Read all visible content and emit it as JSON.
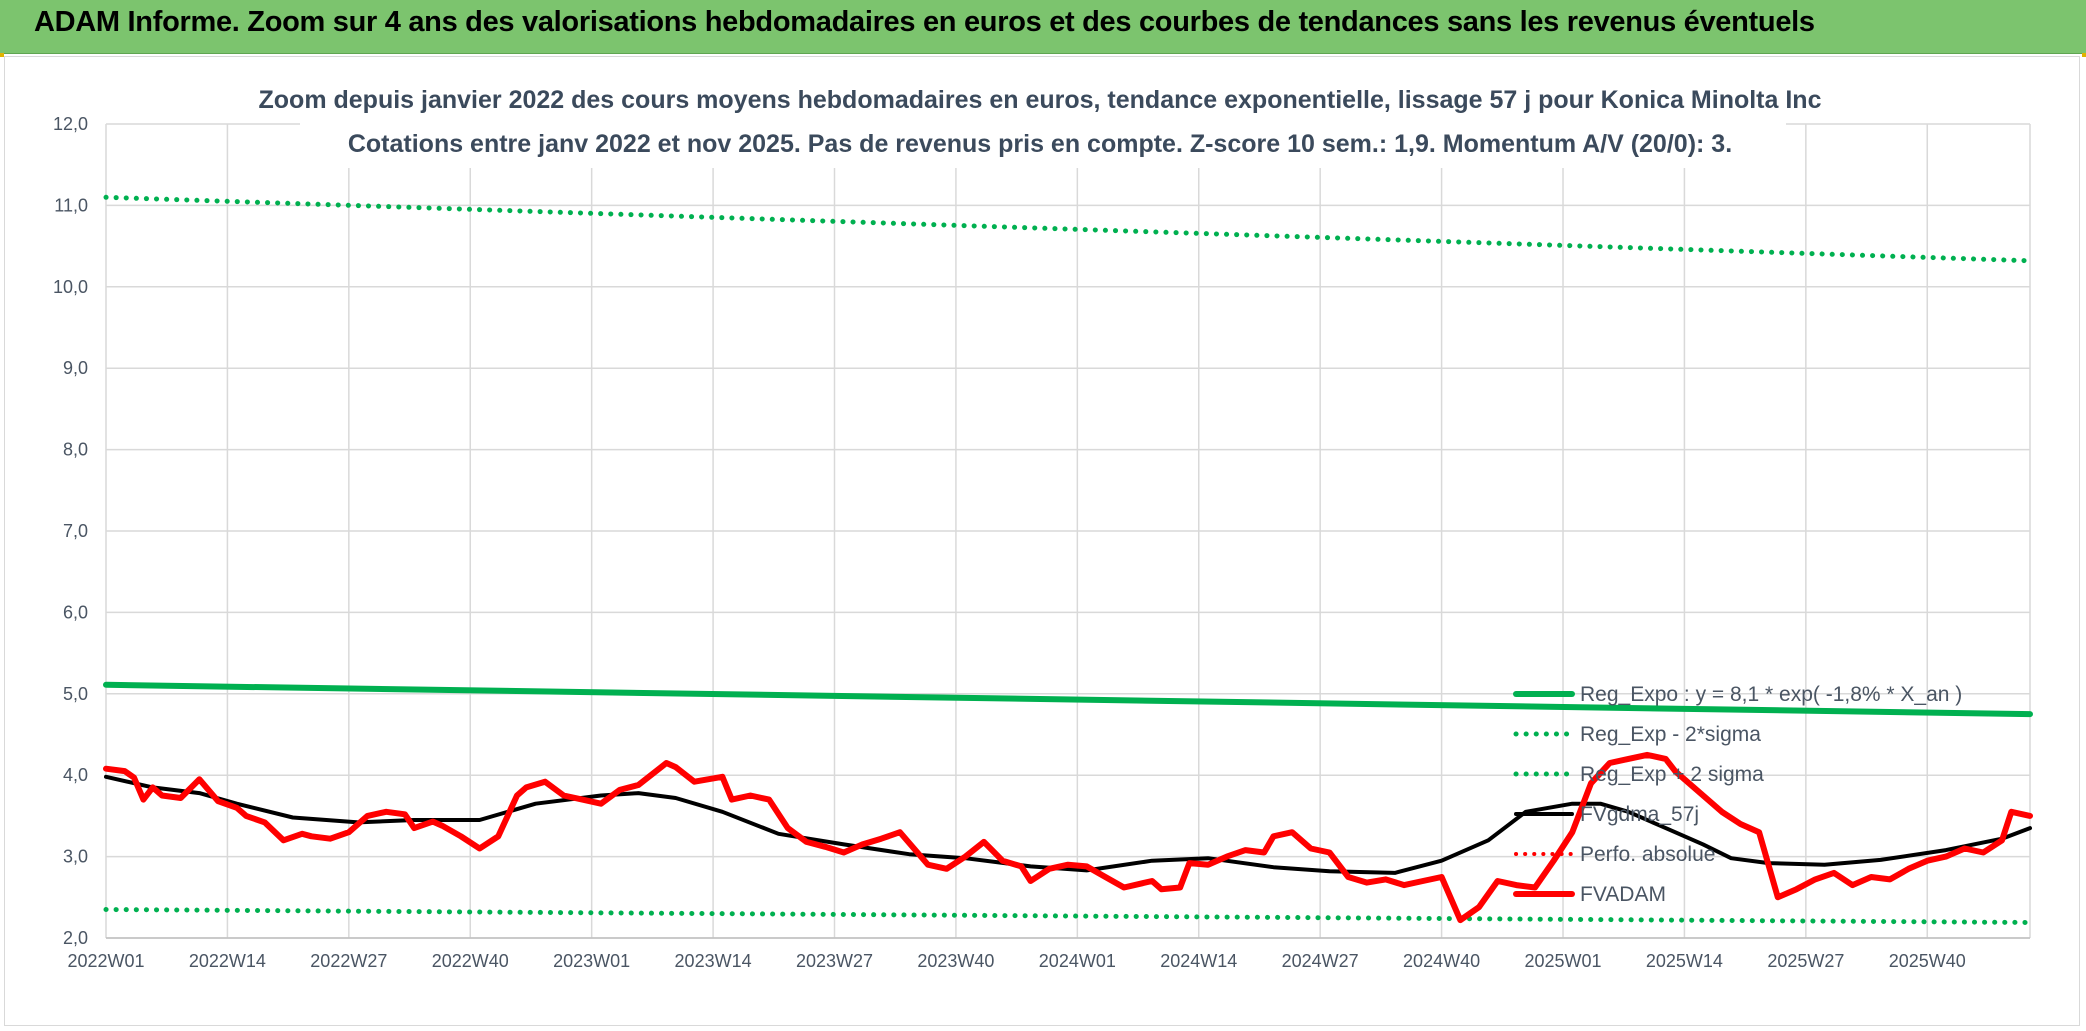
{
  "banner": {
    "title": "ADAM Informe. Zoom sur 4 ans des valorisations hebdomadaires en euros et des courbes de tendances sans les revenus éventuels"
  },
  "colors": {
    "banner_bg": "#7cc46e",
    "trend_green": "#00b050",
    "fvadam_red": "#ff0000",
    "fvgdma_black": "#000000"
  },
  "chart_data": {
    "type": "line",
    "title": [
      "Zoom depuis janvier 2022 des cours moyens hebdomadaires en euros, tendance exponentielle, lissage 57 j pour Konica Minolta Inc",
      "Cotations entre janv 2022 et nov 2025. Pas de revenus pris en compte. Z-score 10 sem.: 1,9. Momentum A/V (20/0): 3."
    ],
    "xlabel": "",
    "ylabel": "",
    "ylim": [
      2.0,
      12.0
    ],
    "y_ticks": [
      "2,0",
      "3,0",
      "4,0",
      "5,0",
      "6,0",
      "7,0",
      "8,0",
      "9,0",
      "10,0",
      "11,0",
      "12,0"
    ],
    "x_ticks": [
      "2022W01",
      "2022W14",
      "2022W27",
      "2022W40",
      "2023W01",
      "2023W14",
      "2023W27",
      "2023W40",
      "2024W01",
      "2024W14",
      "2024W27",
      "2024W40",
      "2025W01",
      "2025W14",
      "2025W27",
      "2025W40"
    ],
    "x_range_weeks": [
      0,
      206
    ],
    "grid": true,
    "legend_position": "right, lower",
    "series": [
      {
        "name": "Reg_Expo : y = 8,1 * exp( -1,8% *  X_an )",
        "style": "solid",
        "color": "#00b050",
        "x": [
          0,
          206
        ],
        "y": [
          5.11,
          4.75
        ]
      },
      {
        "name": "Reg_Exp - 2*sigma",
        "style": "dotted",
        "color": "#00b050",
        "x": [
          0,
          206
        ],
        "y": [
          2.35,
          2.19
        ]
      },
      {
        "name": "Reg_Exp + 2 sigma",
        "style": "dotted",
        "color": "#00b050",
        "x": [
          0,
          206
        ],
        "y": [
          11.1,
          10.32
        ]
      },
      {
        "name": "FVgdma_57j",
        "style": "solid",
        "color": "#000000",
        "x": [
          0,
          5,
          10,
          14,
          20,
          27,
          33,
          40,
          46,
          53,
          57,
          61,
          66,
          72,
          79,
          86,
          92,
          99,
          105,
          112,
          118,
          125,
          131,
          138,
          143,
          148,
          152,
          157,
          160,
          163,
          167,
          171,
          174,
          178,
          184,
          190,
          197,
          203,
          206
        ],
        "y": [
          3.98,
          3.85,
          3.78,
          3.65,
          3.48,
          3.42,
          3.45,
          3.45,
          3.65,
          3.75,
          3.78,
          3.72,
          3.55,
          3.28,
          3.15,
          3.03,
          2.98,
          2.88,
          2.83,
          2.95,
          2.98,
          2.87,
          2.82,
          2.8,
          2.95,
          3.2,
          3.55,
          3.65,
          3.65,
          3.55,
          3.35,
          3.15,
          2.98,
          2.92,
          2.9,
          2.96,
          3.08,
          3.22,
          3.35
        ]
      },
      {
        "name": "Perfo. absolue",
        "style": "dotted",
        "color": "#ff0000",
        "x": [],
        "y": []
      },
      {
        "name": "FVADAM",
        "style": "solid",
        "color": "#ff0000",
        "x": [
          0,
          2,
          3,
          4,
          5,
          6,
          8,
          10,
          12,
          14,
          15,
          17,
          19,
          21,
          22,
          24,
          26,
          28,
          30,
          32,
          33,
          35,
          36,
          38,
          40,
          42,
          44,
          45,
          47,
          49,
          51,
          53,
          55,
          57,
          60,
          61,
          63,
          66,
          67,
          69,
          71,
          73,
          75,
          77,
          79,
          81,
          83,
          85,
          88,
          90,
          92,
          94,
          96,
          98,
          99,
          101,
          103,
          105,
          107,
          109,
          112,
          113,
          115,
          116,
          118,
          120,
          122,
          124,
          125,
          127,
          129,
          131,
          133,
          135,
          137,
          139,
          141,
          143,
          145,
          147,
          149,
          151,
          153,
          155,
          157,
          159,
          161,
          163,
          165,
          167,
          168,
          169,
          171,
          173,
          175,
          177,
          179,
          181,
          183,
          185,
          187,
          189,
          191,
          193,
          195,
          197,
          199,
          201,
          203,
          204,
          206
        ],
        "y": [
          4.08,
          4.05,
          3.97,
          3.7,
          3.85,
          3.75,
          3.72,
          3.95,
          3.68,
          3.6,
          3.5,
          3.42,
          3.2,
          3.28,
          3.25,
          3.22,
          3.3,
          3.5,
          3.55,
          3.52,
          3.35,
          3.43,
          3.38,
          3.25,
          3.1,
          3.25,
          3.75,
          3.85,
          3.92,
          3.75,
          3.7,
          3.65,
          3.82,
          3.88,
          4.15,
          4.1,
          3.92,
          3.98,
          3.7,
          3.75,
          3.7,
          3.35,
          3.18,
          3.12,
          3.05,
          3.15,
          3.22,
          3.3,
          2.9,
          2.85,
          3.0,
          3.18,
          2.95,
          2.88,
          2.7,
          2.85,
          2.9,
          2.88,
          2.75,
          2.62,
          2.7,
          2.6,
          2.62,
          2.92,
          2.9,
          3.0,
          3.08,
          3.05,
          3.25,
          3.3,
          3.1,
          3.05,
          2.75,
          2.68,
          2.72,
          2.65,
          2.7,
          2.75,
          2.22,
          2.38,
          2.7,
          2.65,
          2.62,
          2.95,
          3.3,
          3.9,
          4.15,
          4.2,
          4.25,
          4.2,
          4.05,
          3.95,
          3.75,
          3.55,
          3.4,
          3.3,
          2.5,
          2.6,
          2.72,
          2.8,
          2.65,
          2.75,
          2.72,
          2.85,
          2.95,
          3.0,
          3.1,
          3.05,
          3.2,
          3.55,
          3.5
        ]
      }
    ]
  }
}
